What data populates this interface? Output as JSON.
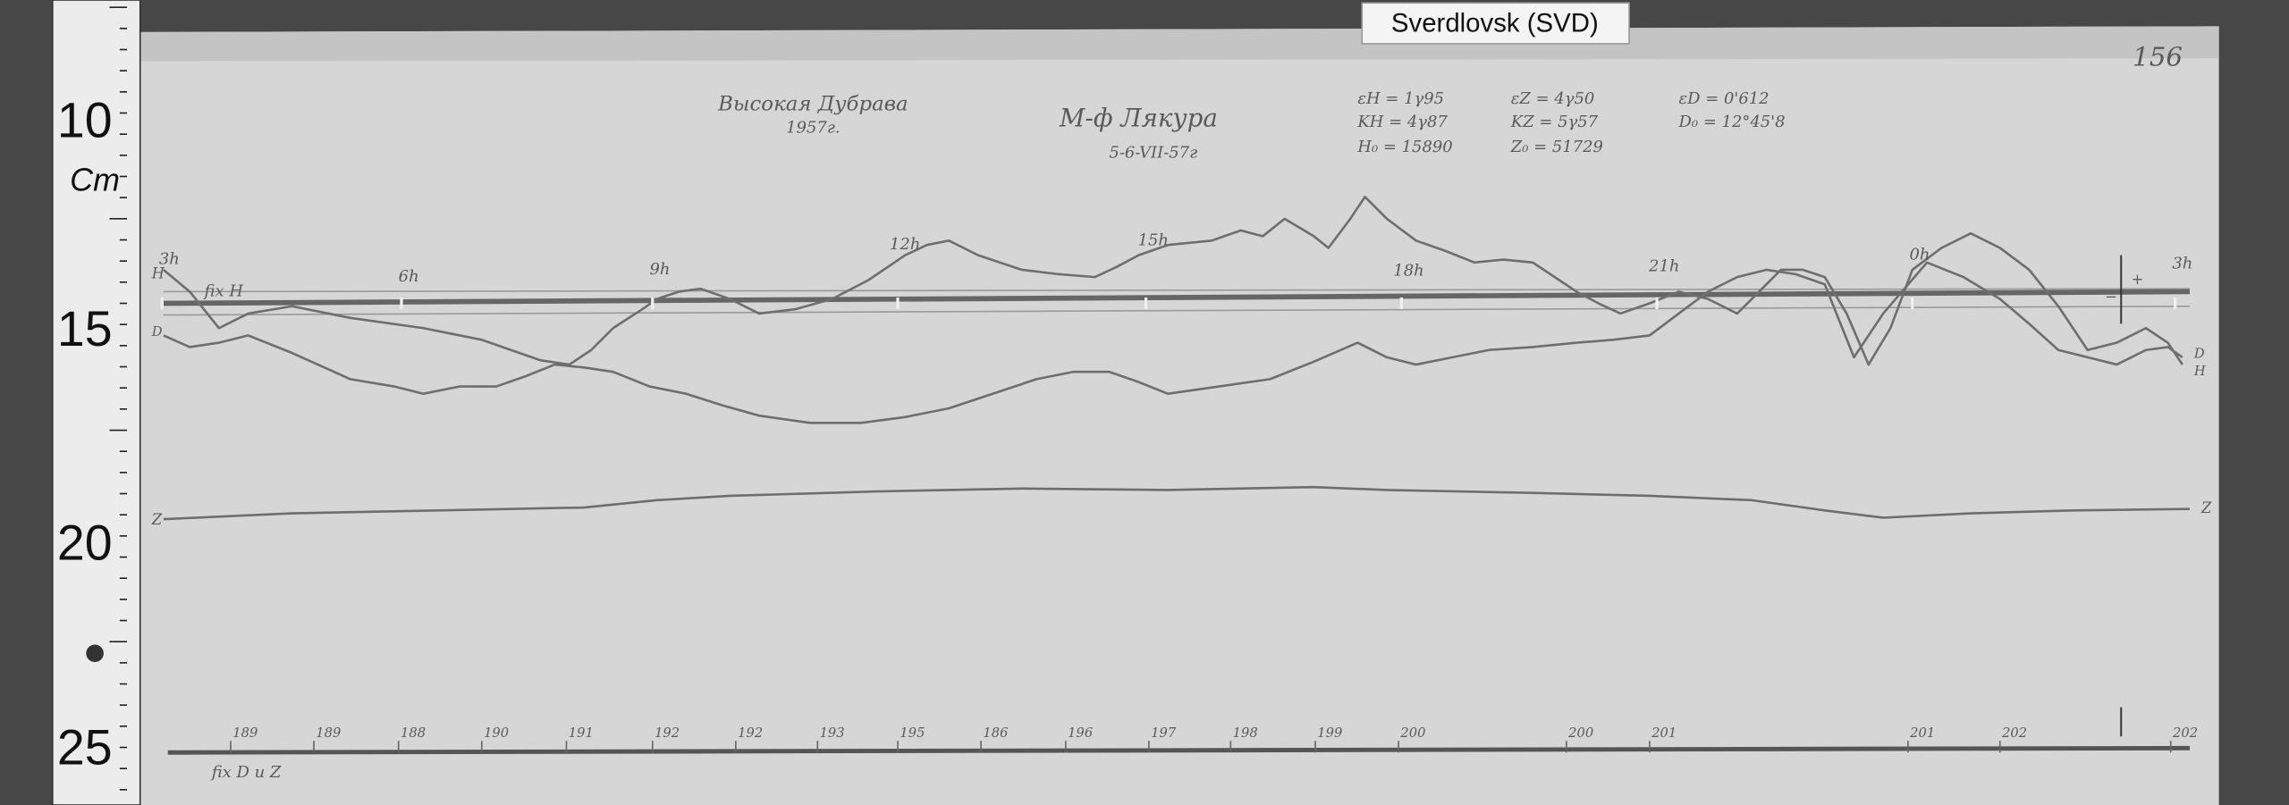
{
  "header": {
    "station_label": "Sverdlovsk (SVD)",
    "page_number": "156"
  },
  "title": {
    "place": "Высокая Дубрава",
    "year": "1957г.",
    "observer": "М-ф Лякура",
    "date": "5-6-VII-57г"
  },
  "parameters": [
    "εH = 1γ95",
    "εZ = 4γ50",
    "εD = 0'612",
    "KH = 4γ87",
    "KZ = 5γ57",
    "D₀ = 12°45'8",
    "H₀ = 15890",
    "Z₀ = 51729"
  ],
  "ruler": [
    "10",
    "Cm",
    "15",
    "20",
    "25"
  ],
  "hour_labels": [
    "3h",
    "6h",
    "9h",
    "12h",
    "15h",
    "18h",
    "21h",
    "0h",
    "3h"
  ],
  "curve_labels": [
    "H",
    "D",
    "Z",
    "Z",
    "D",
    "H",
    "+",
    "−"
  ],
  "fix_labels": [
    "fix H",
    "fix D и Z"
  ],
  "bottom_numbers": [
    "189",
    "189",
    "188",
    "190",
    "191",
    "192",
    "192",
    "193",
    "195",
    "186",
    "196",
    "197",
    "198",
    "199",
    "200",
    "200",
    "201",
    "201",
    "202",
    "202"
  ]
}
